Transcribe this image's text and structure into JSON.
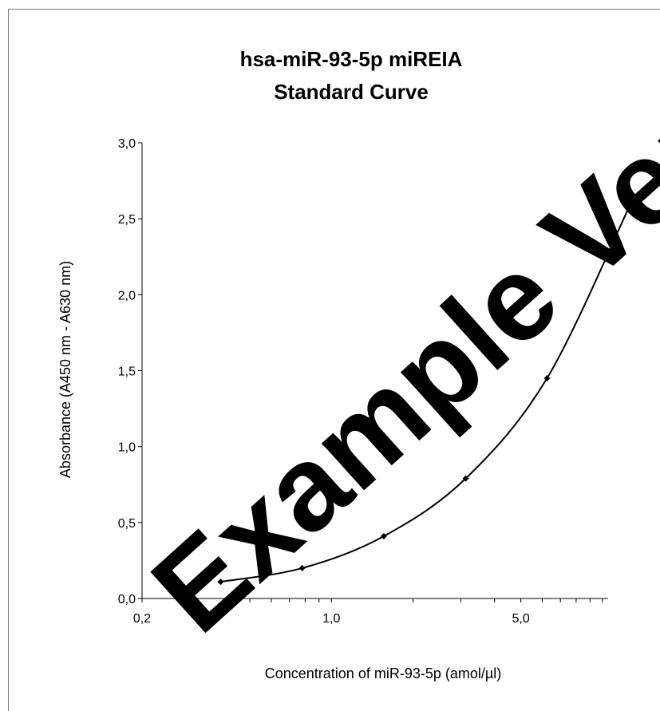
{
  "chart_data": {
    "type": "line",
    "title_lines": [
      "hsa-miR-93-5p miREIA",
      "Standard Curve"
    ],
    "xlabel": "Concentration of miR-93-5p (amol/µl)",
    "ylabel": "Absorbance (A450 nm - A630 nm)",
    "x_scale": "log",
    "xlim": [
      0.2,
      10.5
    ],
    "ylim": [
      0,
      3
    ],
    "x_tick_labels": [
      {
        "value": 0.2,
        "label": "0,2"
      },
      {
        "value": 1.0,
        "label": "1,0"
      },
      {
        "value": 5.0,
        "label": "5,0"
      }
    ],
    "x_minor_ticks": [
      0.3,
      0.4,
      0.5,
      0.6,
      0.7,
      0.8,
      0.9,
      2,
      3,
      4,
      6,
      7,
      8,
      9,
      10
    ],
    "y_ticks": [
      {
        "value": 0,
        "label": "0,0"
      },
      {
        "value": 0.5,
        "label": "0,5"
      },
      {
        "value": 1.0,
        "label": "1,0"
      },
      {
        "value": 1.5,
        "label": "1,5"
      },
      {
        "value": 2.0,
        "label": "2,0"
      },
      {
        "value": 2.5,
        "label": "2,5"
      },
      {
        "value": 3.0,
        "label": "3,0"
      }
    ],
    "grid": false,
    "series": [
      {
        "x": [
          0.39,
          0.78,
          1.56,
          3.13,
          6.25,
          12.5
        ],
        "y": [
          0.11,
          0.2,
          0.41,
          0.79,
          1.45,
          2.57
        ],
        "color": "#000000",
        "marker": "diamond",
        "smooth": true
      }
    ]
  },
  "watermark": "Example Version"
}
